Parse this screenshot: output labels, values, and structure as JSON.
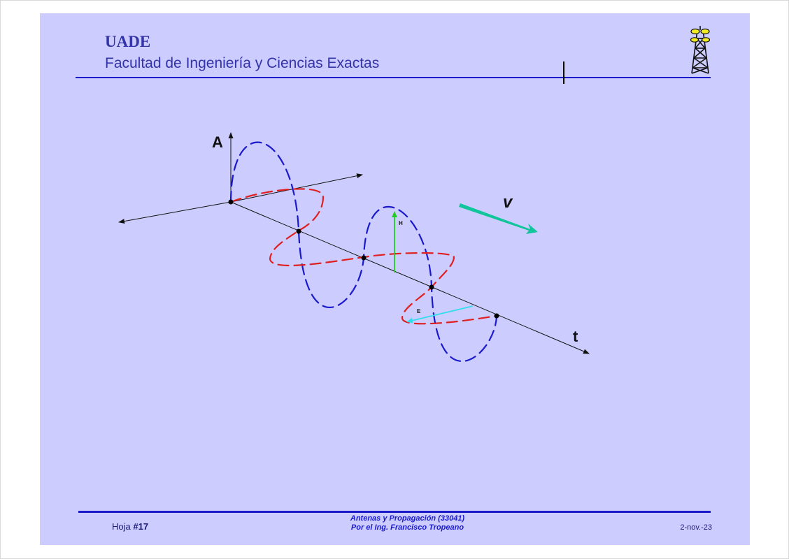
{
  "header": {
    "org": "UADE",
    "faculty": "Facultad de Ingeniería y Ciencias Exactas"
  },
  "diagram": {
    "axis_amplitude_label": "A",
    "axis_time_label": "t",
    "velocity_label": "v",
    "magnetic_label": "H",
    "electric_label": "E",
    "colors": {
      "amplitude_wave": "#1a1acc",
      "horizontal_wave": "#e02020",
      "magnetic_vector": "#22cc22",
      "electric_vector": "#33ddee",
      "velocity_arrow": "#11c59a"
    }
  },
  "footer": {
    "sheet_prefix": "Hoja ",
    "sheet_number": "#17",
    "course_line1": "Antenas y Propagación (33041)",
    "course_line2": "Por el Ing. Francisco Tropeano",
    "date": "2-nov.-23"
  }
}
